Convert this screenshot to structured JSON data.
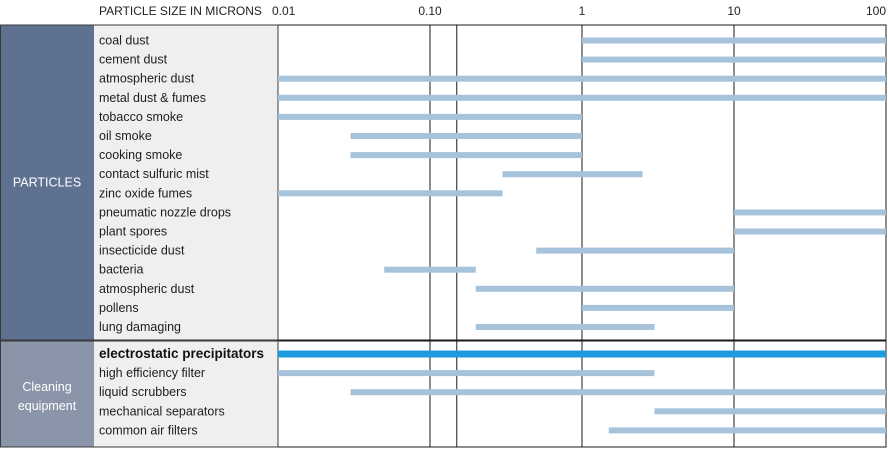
{
  "chart_data": {
    "type": "bar",
    "subtype": "range-horizontal",
    "scale": "log",
    "title": "",
    "xlabel": "PARTICLE SIZE IN MICRONS",
    "ylabel": "",
    "xlim": [
      0.01,
      100
    ],
    "x_ticks": [
      {
        "value": 0.01,
        "label": "0.01"
      },
      {
        "value": 0.1,
        "label": "0.10"
      },
      {
        "value": 1,
        "label": "1"
      },
      {
        "value": 10,
        "label": "10"
      },
      {
        "value": 100,
        "label": "100"
      }
    ],
    "vertical_gridlines": [
      0.1,
      0.15,
      1,
      10
    ],
    "colors": {
      "bar": "#a7c3dc",
      "highlight_bar": "#1e9be0",
      "particles_panel": "#5f7191",
      "equipment_panel": "#8b95a9",
      "label_panel": "#efefef"
    },
    "groups": [
      {
        "name": "PARTICLES",
        "rows": [
          {
            "label": "coal dust",
            "range": [
              1,
              100
            ]
          },
          {
            "label": "cement dust",
            "range": [
              1,
              100
            ]
          },
          {
            "label": "atmospheric dust",
            "range": [
              0.01,
              100
            ]
          },
          {
            "label": "metal dust & fumes",
            "range": [
              0.01,
              100
            ]
          },
          {
            "label": "tobacco smoke",
            "range": [
              0.01,
              1
            ]
          },
          {
            "label": "oil smoke",
            "range": [
              0.03,
              1
            ]
          },
          {
            "label": "cooking smoke",
            "range": [
              0.03,
              1
            ]
          },
          {
            "label": "contact sulfuric mist",
            "range": [
              0.3,
              2.5
            ]
          },
          {
            "label": "zinc oxide fumes",
            "range": [
              0.01,
              0.3
            ]
          },
          {
            "label": "pneumatic nozzle drops",
            "range": [
              10,
              100
            ]
          },
          {
            "label": "plant spores",
            "range": [
              10,
              100
            ]
          },
          {
            "label": "insecticide dust",
            "range": [
              0.5,
              10
            ]
          },
          {
            "label": "bacteria",
            "range": [
              0.05,
              0.2
            ]
          },
          {
            "label": "atmospheric dust",
            "range": [
              0.2,
              10
            ]
          },
          {
            "label": "pollens",
            "range": [
              1,
              10
            ]
          },
          {
            "label": "lung damaging",
            "range": [
              0.2,
              3
            ]
          }
        ]
      },
      {
        "name": "Cleaning equipment",
        "rows": [
          {
            "label": "electrostatic precipitators",
            "range": [
              0.01,
              100
            ],
            "highlight": true
          },
          {
            "label": "high efficiency filter",
            "range": [
              0.01,
              3
            ]
          },
          {
            "label": "liquid scrubbers",
            "range": [
              0.03,
              100
            ]
          },
          {
            "label": "mechanical separators",
            "range": [
              3,
              100
            ]
          },
          {
            "label": "common air filters",
            "range": [
              1.5,
              100
            ]
          }
        ]
      }
    ]
  }
}
